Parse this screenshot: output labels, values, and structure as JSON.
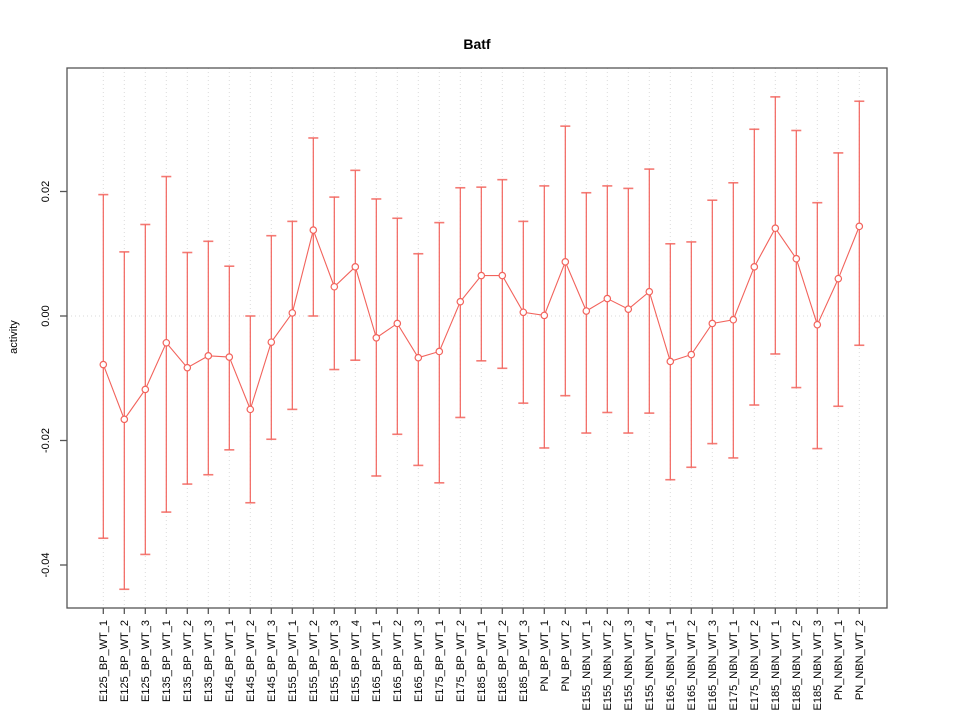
{
  "page": {
    "background": "#ffffff"
  },
  "chart_data": {
    "type": "scatter",
    "connected": true,
    "error_bars": true,
    "title": "Batf",
    "xlabel": "",
    "ylabel": "activity",
    "ylim": [
      -0.0475,
      0.0395
    ],
    "yticks": [
      0.02,
      0,
      -0.02,
      -0.04
    ],
    "ytick_labels": [
      "0.02",
      "0.00",
      "-0.02",
      "-0.04"
    ],
    "legend_position": "none",
    "grid": {
      "vertical_dotted_per_category": true,
      "horizontal_zero_dotted_line": true
    },
    "colors": {
      "series": "#f2635c",
      "point_fill": "#ffffff",
      "grid": "#dadada",
      "axis": "#555555",
      "text": "#000000"
    },
    "categories": [
      "E125_BP_WT_1",
      "E125_BP_WT_2",
      "E125_BP_WT_3",
      "E135_BP_WT_1",
      "E135_BP_WT_2",
      "E135_BP_WT_3",
      "E145_BP_WT_1",
      "E145_BP_WT_2",
      "E145_BP_WT_3",
      "E155_BP_WT_1",
      "E155_BP_WT_2",
      "E155_BP_WT_3",
      "E155_BP_WT_4",
      "E165_BP_WT_1",
      "E165_BP_WT_2",
      "E165_BP_WT_3",
      "E175_BP_WT_1",
      "E175_BP_WT_2",
      "E185_BP_WT_1",
      "E185_BP_WT_2",
      "E185_BP_WT_3",
      "PN_BP_WT_1",
      "PN_BP_WT_2",
      "E155_NBN_WT_1",
      "E155_NBN_WT_2",
      "E155_NBN_WT_3",
      "E155_NBN_WT_4",
      "E165_NBN_WT_1",
      "E165_NBN_WT_2",
      "E165_NBN_WT_3",
      "E175_NBN_WT_1",
      "E175_NBN_WT_2",
      "E185_NBN_WT_1",
      "E185_NBN_WT_2",
      "E185_NBN_WT_3",
      "PN_NBN_WT_1",
      "PN_NBN_WT_2"
    ],
    "series": [
      {
        "name": "activity",
        "values": [
          -0.0078,
          -0.0166,
          -0.0118,
          -0.0043,
          -0.0083,
          -0.0064,
          -0.0066,
          -0.015,
          -0.0042,
          0.0005,
          0.0138,
          0.0047,
          0.0079,
          -0.0035,
          -0.0012,
          -0.0067,
          -0.0057,
          0.0023,
          0.0065,
          0.0065,
          0.0006,
          0.0001,
          0.0087,
          0.0008,
          0.0028,
          0.0011,
          0.0039,
          -0.0073,
          -0.0062,
          -0.0012,
          -0.0006,
          0.0079,
          0.0141,
          0.0092,
          -0.0014,
          0.006,
          0.0144
        ],
        "lower": [
          -0.0357,
          -0.0439,
          -0.0383,
          -0.0315,
          -0.027,
          -0.0255,
          -0.0215,
          -0.03,
          -0.0198,
          -0.015,
          0.0,
          -0.0086,
          -0.0071,
          -0.0257,
          -0.019,
          -0.024,
          -0.0268,
          -0.0163,
          -0.0072,
          -0.0084,
          -0.014,
          -0.0212,
          -0.0128,
          -0.0188,
          -0.0155,
          -0.0188,
          -0.0156,
          -0.0263,
          -0.0243,
          -0.0205,
          -0.0228,
          -0.0143,
          -0.0061,
          -0.0115,
          -0.0213,
          -0.0145,
          -0.0047
        ],
        "upper": [
          0.0195,
          0.0103,
          0.0147,
          0.0224,
          0.0102,
          0.012,
          0.008,
          0.0,
          0.0129,
          0.0152,
          0.0286,
          0.0191,
          0.0234,
          0.0188,
          0.0157,
          0.01,
          0.015,
          0.0206,
          0.0207,
          0.0219,
          0.0152,
          0.0209,
          0.0305,
          0.0198,
          0.0209,
          0.0205,
          0.0236,
          0.0116,
          0.0119,
          0.0186,
          0.0214,
          0.03,
          0.0352,
          0.0298,
          0.0182,
          0.0262,
          0.0345
        ]
      }
    ]
  }
}
